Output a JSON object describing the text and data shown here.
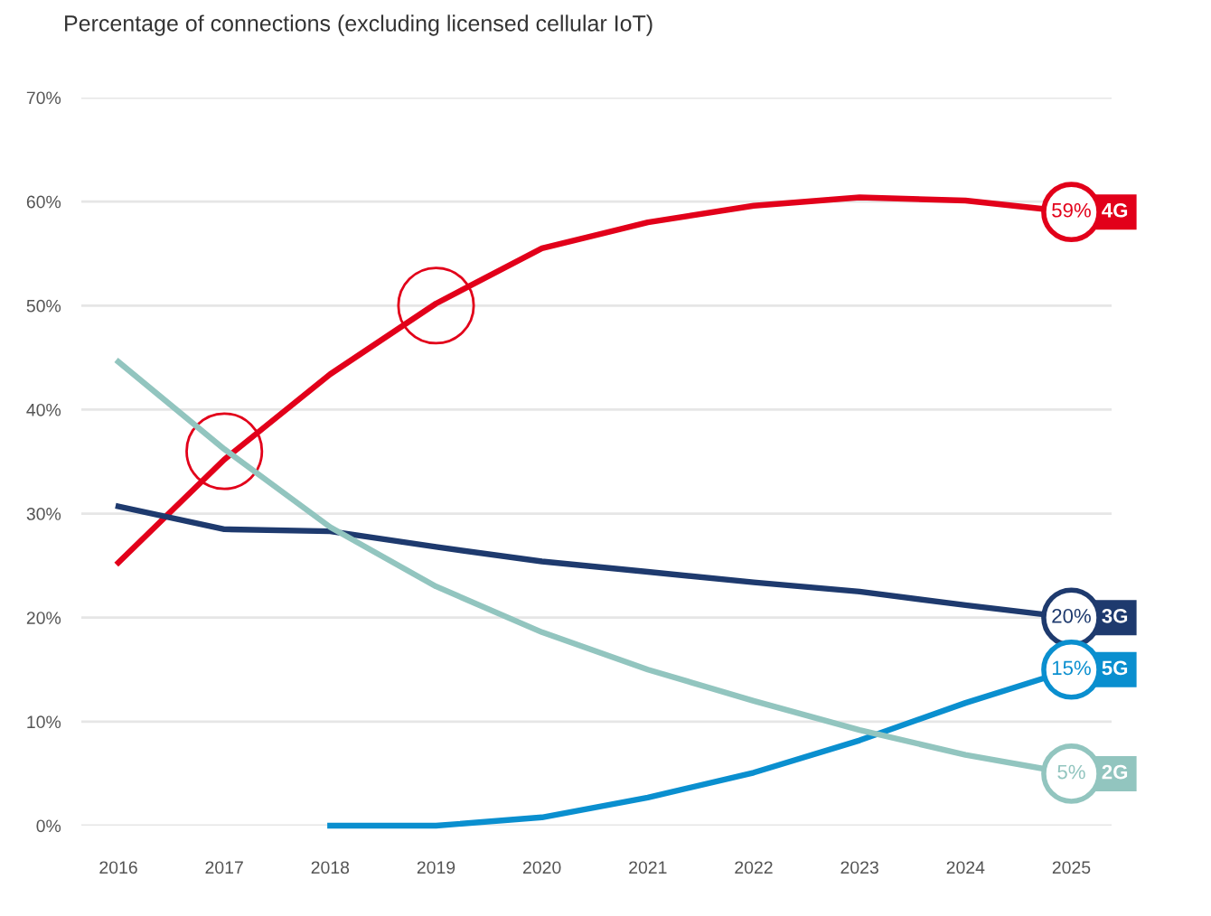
{
  "chart_data": {
    "type": "line",
    "title": "Percentage of connections (excluding licensed cellular IoT)",
    "categories": [
      "2016",
      "2017",
      "2018",
      "2019",
      "2020",
      "2021",
      "2022",
      "2023",
      "2024",
      "2025"
    ],
    "series": [
      {
        "name": "4G",
        "color": "#e2001a",
        "values": [
          25.3,
          35.2,
          43.4,
          50.2,
          55.5,
          58.0,
          59.6,
          60.4,
          60.1,
          59
        ],
        "value_labels": [
          null,
          null,
          null,
          null,
          null,
          null,
          null,
          null,
          null,
          "59%"
        ]
      },
      {
        "name": "3G",
        "color": "#1e3a6e",
        "values": [
          30.7,
          28.5,
          28.3,
          26.8,
          25.4,
          24.4,
          23.4,
          22.5,
          21.2,
          20
        ],
        "value_labels": [
          null,
          null,
          null,
          null,
          null,
          null,
          null,
          null,
          null,
          "20%"
        ]
      },
      {
        "name": "5G",
        "color": "#0a8fcf",
        "values": [
          null,
          null,
          0,
          0,
          0.8,
          2.7,
          5.1,
          8.2,
          11.8,
          15
        ],
        "value_labels": [
          null,
          null,
          null,
          null,
          null,
          null,
          null,
          null,
          null,
          "15%"
        ]
      },
      {
        "name": "2G",
        "color": "#92c5bf",
        "values": [
          44.6,
          36.2,
          28.7,
          23.0,
          18.6,
          15.0,
          12.0,
          9.2,
          6.8,
          5
        ],
        "value_labels": [
          null,
          null,
          null,
          null,
          null,
          null,
          null,
          null,
          null,
          "5%"
        ]
      }
    ],
    "ylim": [
      0,
      70
    ],
    "yticks": [
      {
        "value": 0,
        "label": "0%"
      },
      {
        "value": 10,
        "label": "10%"
      },
      {
        "value": 20,
        "label": "20%"
      },
      {
        "value": 30,
        "label": "30%"
      },
      {
        "value": 40,
        "label": "40%"
      },
      {
        "value": 50,
        "label": "50%"
      },
      {
        "value": 60,
        "label": "60%"
      },
      {
        "value": 70,
        "label": "70%"
      }
    ],
    "grid": "y",
    "legend": false,
    "marker": "none",
    "line_style": "solid"
  }
}
